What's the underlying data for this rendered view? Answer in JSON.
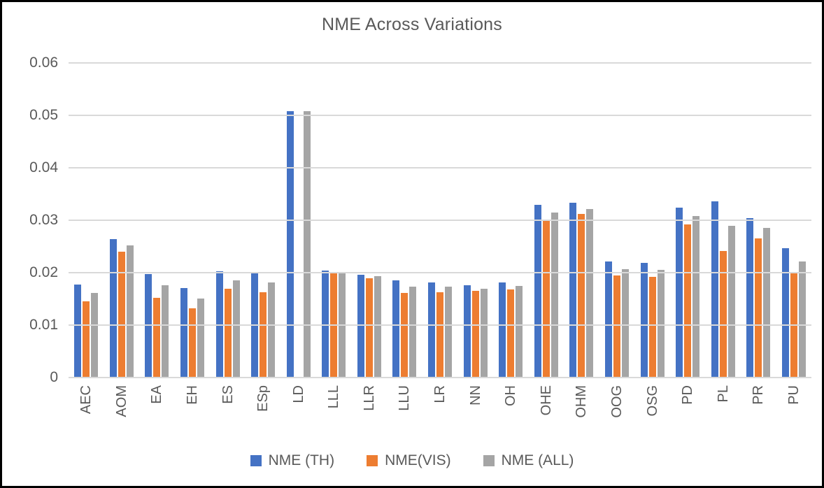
{
  "chart_data": {
    "type": "bar",
    "title": "NME Across Variations",
    "categories": [
      "AEC",
      "AOM",
      "EA",
      "EH",
      "ES",
      "ESp",
      "LD",
      "LLL",
      "LLR",
      "LLU",
      "LR",
      "NN",
      "OH",
      "OHE",
      "OHM",
      "OOG",
      "OSG",
      "PD",
      "PL",
      "PR",
      "PU"
    ],
    "series": [
      {
        "name": "NME (TH)",
        "color": "#4472C4",
        "values": [
          0.0178,
          0.0264,
          0.0198,
          0.0171,
          0.0203,
          0.0201,
          0.0508,
          0.0204,
          0.0196,
          0.0186,
          0.0182,
          0.0176,
          0.0182,
          0.033,
          0.0334,
          0.0221,
          0.0219,
          0.0324,
          0.0336,
          0.0304,
          0.0247
        ]
      },
      {
        "name": "NME(VIS)",
        "color": "#ED7D31",
        "values": [
          0.0146,
          0.024,
          0.0152,
          0.0132,
          0.017,
          0.0163,
          0.0,
          0.0199,
          0.0189,
          0.0161,
          0.0163,
          0.0166,
          0.0168,
          0.0299,
          0.0312,
          0.0195,
          0.0192,
          0.0292,
          0.0242,
          0.0266,
          0.0199
        ]
      },
      {
        "name": "NME (ALL)",
        "color": "#A5A5A5",
        "values": [
          0.0162,
          0.0252,
          0.0176,
          0.0151,
          0.0186,
          0.0182,
          0.0508,
          0.0201,
          0.0193,
          0.0173,
          0.0173,
          0.0169,
          0.0175,
          0.0315,
          0.0322,
          0.0207,
          0.0206,
          0.0308,
          0.029,
          0.0285,
          0.0222
        ]
      }
    ],
    "ylim": [
      0,
      0.06
    ],
    "yticks": [
      0,
      0.01,
      0.02,
      0.03,
      0.04,
      0.05,
      0.06
    ],
    "ytick_labels": [
      "0",
      "0.01",
      "0.02",
      "0.03",
      "0.04",
      "0.05",
      "0.06"
    ],
    "grid": true,
    "legend_position": "bottom",
    "colors": {
      "text": "#595959",
      "gridline": "#D9D9D9",
      "background": "#FFFFFF",
      "border": "#000000"
    }
  }
}
